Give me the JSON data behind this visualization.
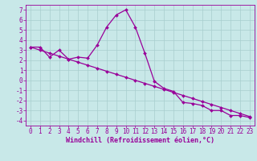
{
  "line1_x": [
    0,
    1,
    2,
    3,
    4,
    5,
    6,
    7,
    8,
    9,
    10,
    11,
    12,
    13,
    14,
    15,
    16,
    17,
    18,
    19,
    20,
    21,
    22,
    23
  ],
  "line1_y": [
    3.3,
    3.3,
    2.3,
    3.0,
    2.1,
    2.3,
    2.2,
    3.5,
    5.3,
    6.5,
    7.0,
    5.3,
    2.7,
    -0.1,
    -0.8,
    -1.1,
    -2.2,
    -2.3,
    -2.5,
    -3.0,
    -3.0,
    -3.5,
    -3.5,
    -3.7
  ],
  "line2_x": [
    0,
    1,
    2,
    3,
    4,
    5,
    6,
    7,
    8,
    9,
    10,
    11,
    12,
    13,
    14,
    15,
    16,
    17,
    18,
    19,
    20,
    21,
    22,
    23
  ],
  "line2_y": [
    3.3,
    3.0,
    2.7,
    2.4,
    2.1,
    1.8,
    1.5,
    1.2,
    0.9,
    0.6,
    0.3,
    0.0,
    -0.3,
    -0.6,
    -0.9,
    -1.2,
    -1.5,
    -1.8,
    -2.1,
    -2.4,
    -2.7,
    -3.0,
    -3.3,
    -3.6
  ],
  "color": "#990099",
  "bg_color": "#c8e8e8",
  "grid_color": "#a8cece",
  "xlabel": "Windchill (Refroidissement éolien,°C)",
  "xlim": [
    -0.5,
    23.5
  ],
  "ylim": [
    -4.5,
    7.5
  ],
  "yticks": [
    -4,
    -3,
    -2,
    -1,
    0,
    1,
    2,
    3,
    4,
    5,
    6,
    7
  ],
  "xticks": [
    0,
    1,
    2,
    3,
    4,
    5,
    6,
    7,
    8,
    9,
    10,
    11,
    12,
    13,
    14,
    15,
    16,
    17,
    18,
    19,
    20,
    21,
    22,
    23
  ],
  "tick_fontsize": 5.5,
  "xlabel_fontsize": 6.0,
  "marker_size": 2.0,
  "line_width": 0.9
}
